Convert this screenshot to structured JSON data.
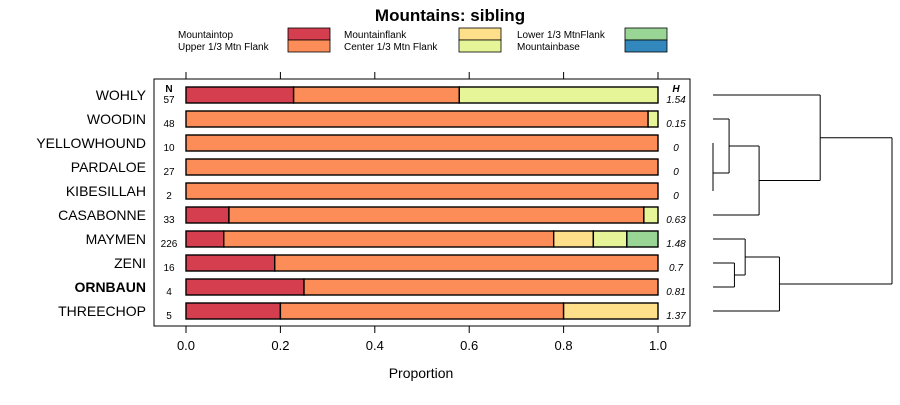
{
  "chart_data": {
    "type": "bar",
    "orientation": "horizontal",
    "stacked": true,
    "title": "Mountains: sibling",
    "xlabel": "Proportion",
    "ylabel": "",
    "xlim": [
      0,
      1
    ],
    "x_ticks": [
      "0.0",
      "0.2",
      "0.4",
      "0.6",
      "0.8",
      "1.0"
    ],
    "n_header": "N",
    "h_header": "H",
    "categories": [
      "WOHLY",
      "WOODIN",
      "YELLOWHOUND",
      "PARDALOE",
      "KIBESILLAH",
      "CASABONNE",
      "MAYMEN",
      "ZENI",
      "ORNBAUN",
      "THREECHOP"
    ],
    "bold_categories": [
      "ORNBAUN"
    ],
    "n": [
      "57",
      "48",
      "10",
      "27",
      "2",
      "33",
      "226",
      "16",
      "4",
      "5"
    ],
    "h": [
      "1.54",
      "0.15",
      "0",
      "0",
      "0",
      "0.63",
      "1.48",
      "0.7",
      "0.81",
      "1.37"
    ],
    "series": [
      {
        "name": "Mountaintop",
        "color": "#d53e4f",
        "values": [
          0.228,
          0,
          0,
          0,
          0,
          0.091,
          0.08,
          0.188,
          0.25,
          0.2
        ]
      },
      {
        "name": "Upper 1/3 Mtn Flank",
        "color": "#fc8d59",
        "values": [
          0.351,
          0.979,
          1.0,
          1.0,
          1.0,
          0.879,
          0.699,
          0.812,
          0.75,
          0.6
        ]
      },
      {
        "name": "Mountainflank",
        "color": "#fee08b",
        "values": [
          0,
          0,
          0,
          0,
          0,
          0,
          0.084,
          0,
          0,
          0.2
        ]
      },
      {
        "name": "Center 1/3 Mtn Flank",
        "color": "#e6f598",
        "values": [
          0.421,
          0.021,
          0,
          0,
          0,
          0.03,
          0.071,
          0,
          0,
          0
        ]
      },
      {
        "name": "Lower 1/3 MtnFlank",
        "color": "#99d594",
        "values": [
          0,
          0,
          0,
          0,
          0,
          0,
          0.066,
          0,
          0,
          0
        ]
      },
      {
        "name": "Mountainbase",
        "color": "#3288bd",
        "values": [
          0,
          0,
          0,
          0,
          0,
          0,
          0,
          0,
          0,
          0
        ]
      }
    ],
    "dendrogram": {
      "merges": [
        [
          "YELLOWHOUND",
          "PARDALOE",
          0.0
        ],
        [
          "KIBESILLAH",
          "m0",
          0.0
        ],
        [
          "WOODIN",
          "m1",
          0.15
        ],
        [
          "m2",
          "CASABONNE",
          0.43
        ],
        [
          "ZENI",
          "ORNBAUN",
          0.2
        ],
        [
          "MAYMEN",
          "m4",
          0.3
        ],
        [
          "m5",
          "THREECHOP",
          0.62
        ],
        [
          "WOHLY",
          "m3",
          1.0
        ],
        [
          "m7",
          "m6",
          1.67
        ]
      ]
    }
  }
}
